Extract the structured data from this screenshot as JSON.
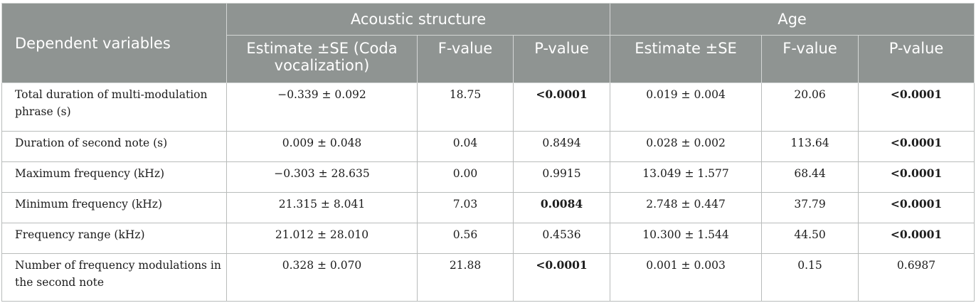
{
  "header": {
    "dependent_variables": "Dependent variables",
    "group_acoustic": "Acoustic structure",
    "group_age": "Age",
    "estimate_coda": "Estimate ±SE (Coda vocalization)",
    "f_value": "F-value",
    "p_value": "P-value",
    "estimate": "Estimate ±SE"
  },
  "rows": [
    {
      "variable": "Total duration of multi-modulation phrase (s)",
      "ac_est": "−0.339 ± 0.092",
      "ac_f": "18.75",
      "ac_p": "<0.0001",
      "age_est": "0.019 ± 0.004",
      "age_f": "20.06",
      "age_p": "<0.0001"
    },
    {
      "variable": "Duration of second note (s)",
      "ac_est": "0.009 ± 0.048",
      "ac_f": "0.04",
      "ac_p": "0.8494",
      "age_est": "0.028 ± 0.002",
      "age_f": "113.64",
      "age_p": "<0.0001"
    },
    {
      "variable": "Maximum frequency (kHz)",
      "ac_est": "−0.303 ± 28.635",
      "ac_f": "0.00",
      "ac_p": "0.9915",
      "age_est": "13.049 ± 1.577",
      "age_f": "68.44",
      "age_p": "<0.0001"
    },
    {
      "variable": "Minimum frequency (kHz)",
      "ac_est": "21.315 ± 8.041",
      "ac_f": "7.03",
      "ac_p": "0.0084",
      "age_est": "2.748 ± 0.447",
      "age_f": "37.79",
      "age_p": "<0.0001"
    },
    {
      "variable": "Frequency range (kHz)",
      "ac_est": "21.012 ± 28.010",
      "ac_f": "0.56",
      "ac_p": "0.4536",
      "age_est": "10.300 ± 1.544",
      "age_f": "44.50",
      "age_p": "<0.0001"
    },
    {
      "variable": "Number of frequency modulations in the second note",
      "ac_est": "0.328 ± 0.070",
      "ac_f": "21.88",
      "ac_p": "<0.0001",
      "age_est": "0.001 ± 0.003",
      "age_f": "0.15",
      "age_p": "0.6987"
    }
  ]
}
